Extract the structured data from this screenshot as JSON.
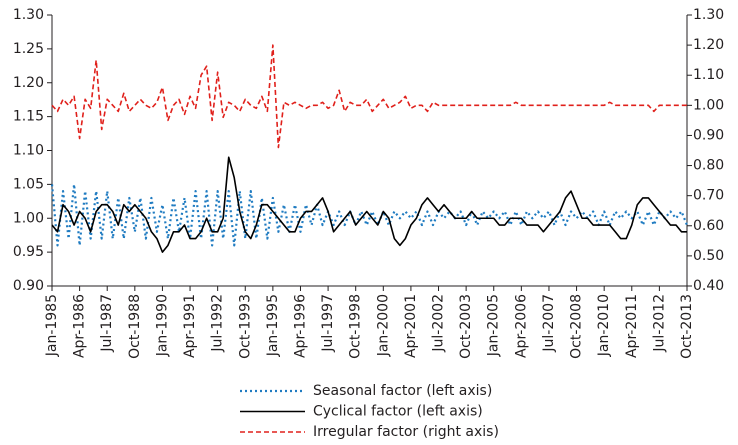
{
  "chart_data": {
    "type": "line",
    "x": [
      "Jan-1985",
      null,
      null,
      null,
      null,
      "Apr-1986",
      null,
      null,
      null,
      null,
      "Jul-1987",
      null,
      null,
      null,
      null,
      "Oct-1988",
      null,
      null,
      null,
      null,
      "Jan-1990",
      null,
      null,
      null,
      null,
      "Apr-1991",
      null,
      null,
      null,
      null,
      "Jul-1992",
      null,
      null,
      null,
      null,
      "Oct-1993",
      null,
      null,
      null,
      null,
      "Jan-1995",
      null,
      null,
      null,
      null,
      "Apr-1996",
      null,
      null,
      null,
      null,
      "Jul-1997",
      null,
      null,
      null,
      null,
      "Oct-1998",
      null,
      null,
      null,
      null,
      "Jan-2000",
      null,
      null,
      null,
      null,
      "Apr-2001",
      null,
      null,
      null,
      null,
      "Jul-2002",
      null,
      null,
      null,
      null,
      "Oct-2003",
      null,
      null,
      null,
      null,
      "Jan-2005",
      null,
      null,
      null,
      null,
      "Apr-2006",
      null,
      null,
      null,
      null,
      "Jul-2007",
      null,
      null,
      null,
      null,
      "Oct-2008",
      null,
      null,
      null,
      null,
      "Jan-2010",
      null,
      null,
      null,
      null,
      "Apr-2011",
      null,
      null,
      null,
      null,
      "Jul-2012",
      null,
      null,
      null,
      null,
      "Oct-2013"
    ],
    "series": [
      {
        "name": "Seasonal factor (left axis)",
        "color": "#1f7bc1",
        "axis": "y",
        "values": [
          1.05,
          0.96,
          1.04,
          0.97,
          1.05,
          0.96,
          1.04,
          0.97,
          1.04,
          0.97,
          1.04,
          0.97,
          1.03,
          0.97,
          1.03,
          0.98,
          1.03,
          0.97,
          1.03,
          0.98,
          1.02,
          0.97,
          1.03,
          0.98,
          1.03,
          0.97,
          1.04,
          0.97,
          1.04,
          0.96,
          1.04,
          0.97,
          1.04,
          0.96,
          1.04,
          0.97,
          1.04,
          0.97,
          1.03,
          0.97,
          1.03,
          0.98,
          1.02,
          0.98,
          1.02,
          0.98,
          1.02,
          0.99,
          1.02,
          0.99,
          1.01,
          0.99,
          1.01,
          0.99,
          1.01,
          0.99,
          1.01,
          0.99,
          1.01,
          0.99,
          1.01,
          0.99,
          1.01,
          1.0,
          1.01,
          1.0,
          1.01,
          0.99,
          1.01,
          0.99,
          1.01,
          1.0,
          1.01,
          1.0,
          1.01,
          0.99,
          1.01,
          0.99,
          1.01,
          1.0,
          1.01,
          1.0,
          1.01,
          0.99,
          1.01,
          0.99,
          1.01,
          1.0,
          1.01,
          1.0,
          1.01,
          0.99,
          1.01,
          0.99,
          1.01,
          1.0,
          1.01,
          1.0,
          1.01,
          0.99,
          1.01,
          0.99,
          1.01,
          1.0,
          1.01,
          1.0,
          1.01,
          0.99,
          1.01,
          0.99,
          1.01,
          1.0,
          1.01,
          1.0,
          1.01,
          0.99
        ]
      },
      {
        "name": "Cyclical factor (left axis)",
        "color": "#000000",
        "axis": "y",
        "values": [
          0.99,
          0.98,
          1.02,
          1.01,
          0.99,
          1.01,
          1.0,
          0.98,
          1.01,
          1.02,
          1.02,
          1.01,
          0.99,
          1.02,
          1.01,
          1.02,
          1.01,
          1.0,
          0.98,
          0.97,
          0.95,
          0.96,
          0.98,
          0.98,
          0.99,
          0.97,
          0.97,
          0.98,
          1.0,
          0.98,
          0.98,
          1.0,
          1.09,
          1.06,
          1.01,
          0.98,
          0.97,
          0.99,
          1.02,
          1.02,
          1.01,
          1.0,
          0.99,
          0.98,
          0.98,
          1.0,
          1.01,
          1.01,
          1.02,
          1.03,
          1.01,
          0.98,
          0.99,
          1.0,
          1.01,
          0.99,
          1.0,
          1.01,
          1.0,
          0.99,
          1.01,
          1.0,
          0.97,
          0.96,
          0.97,
          0.99,
          1.0,
          1.02,
          1.03,
          1.02,
          1.01,
          1.02,
          1.01,
          1.0,
          1.0,
          1.0,
          1.01,
          1.0,
          1.0,
          1.0,
          1.0,
          0.99,
          0.99,
          1.0,
          1.0,
          1.0,
          0.99,
          0.99,
          0.99,
          0.98,
          0.99,
          1.0,
          1.01,
          1.03,
          1.04,
          1.02,
          1.0,
          1.0,
          0.99,
          0.99,
          0.99,
          0.99,
          0.98,
          0.97,
          0.97,
          0.99,
          1.02,
          1.03,
          1.03,
          1.02,
          1.01,
          1.0,
          0.99,
          0.99,
          0.98,
          0.98
        ]
      },
      {
        "name": "Irregular factor (right axis)",
        "color": "#e0201b",
        "axis": "y2",
        "values": [
          1.0,
          0.98,
          1.02,
          1.0,
          1.03,
          0.89,
          1.02,
          0.99,
          1.15,
          0.92,
          1.02,
          1.0,
          0.98,
          1.04,
          0.98,
          1.0,
          1.02,
          1.0,
          0.99,
          1.01,
          1.06,
          0.95,
          1.0,
          1.02,
          0.97,
          1.03,
          0.99,
          1.1,
          1.13,
          0.95,
          1.11,
          0.96,
          1.01,
          1.0,
          0.98,
          1.02,
          1.0,
          0.99,
          1.03,
          0.98,
          1.2,
          0.86,
          1.01,
          1.0,
          1.01,
          1.0,
          0.99,
          1.0,
          1.0,
          1.01,
          0.99,
          1.0,
          1.05,
          0.98,
          1.01,
          1.0,
          1.0,
          1.02,
          0.98,
          1.0,
          1.02,
          0.99,
          1.0,
          1.01,
          1.03,
          0.99,
          1.0,
          1.0,
          0.98,
          1.01,
          1.0,
          1.0,
          1.0,
          1.0,
          1.0,
          1.0,
          1.0,
          1.0,
          1.0,
          1.0,
          1.0,
          1.0,
          1.0,
          1.0,
          1.01,
          1.0,
          1.0,
          1.0,
          1.0,
          1.0,
          1.0,
          1.0,
          1.0,
          1.0,
          1.0,
          1.0,
          1.0,
          1.0,
          1.0,
          1.0,
          1.0,
          1.01,
          1.0,
          1.0,
          1.0,
          1.0,
          1.0,
          1.0,
          1.0,
          0.98,
          1.0,
          1.0,
          1.0,
          1.0,
          1.0,
          1.0
        ]
      }
    ],
    "ylim": [
      0.9,
      1.3
    ],
    "yticks": [
      {
        "value": 0.9,
        "label": "0.90"
      },
      {
        "value": 0.95,
        "label": "0.95"
      },
      {
        "value": 1.0,
        "label": "1.00"
      },
      {
        "value": 1.05,
        "label": "1.05"
      },
      {
        "value": 1.1,
        "label": "1.10"
      },
      {
        "value": 1.15,
        "label": "1.15"
      },
      {
        "value": 1.2,
        "label": "1.20"
      },
      {
        "value": 1.25,
        "label": "1.25"
      },
      {
        "value": 1.3,
        "label": "1.30"
      }
    ],
    "y2lim": [
      0.4,
      1.3
    ],
    "y2ticks": [
      {
        "value": 0.4,
        "label": "0.40"
      },
      {
        "value": 0.5,
        "label": "0.50"
      },
      {
        "value": 0.6,
        "label": "0.60"
      },
      {
        "value": 0.7,
        "label": "0.70"
      },
      {
        "value": 0.8,
        "label": "0.80"
      },
      {
        "value": 0.9,
        "label": "0.90"
      },
      {
        "value": 1.0,
        "label": "1.00"
      },
      {
        "value": 1.1,
        "label": "1.10"
      },
      {
        "value": 1.2,
        "label": "1.20"
      },
      {
        "value": 1.3,
        "label": "1.30"
      }
    ],
    "legend": "bottom"
  }
}
